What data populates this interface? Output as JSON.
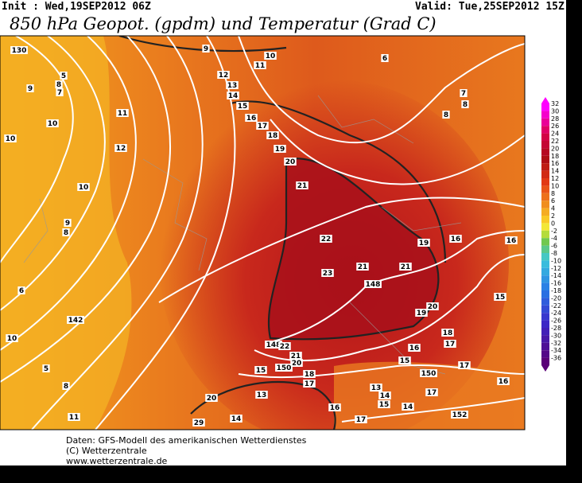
{
  "header": {
    "init": "Init : Wed,19SEP2012 06Z",
    "valid": "Valid: Tue,25SEP2012 15Z",
    "title": "850 hPa Geopot. (gpdm) und Temperatur (Grad C)"
  },
  "colorbar": {
    "labels": [
      "32",
      "30",
      "28",
      "26",
      "24",
      "22",
      "20",
      "18",
      "16",
      "14",
      "12",
      "10",
      "8",
      "6",
      "4",
      "2",
      "0",
      "-2",
      "-4",
      "-6",
      "-8",
      "-10",
      "-12",
      "-14",
      "-16",
      "-18",
      "-20",
      "-22",
      "-24",
      "-26",
      "-28",
      "-30",
      "-32",
      "-34",
      "-36"
    ]
  },
  "map_labels": [
    "130",
    "9",
    "10",
    "11",
    "12",
    "13",
    "14",
    "15",
    "16",
    "17",
    "18",
    "19",
    "20",
    "21",
    "22",
    "21",
    "21",
    "23",
    "148",
    "19",
    "16",
    "16",
    "20",
    "19",
    "15",
    "18",
    "17",
    "16",
    "15",
    "150",
    "17",
    "16",
    "148",
    "22",
    "21",
    "20",
    "150",
    "18",
    "17",
    "15",
    "13",
    "20",
    "29",
    "14",
    "13",
    "14",
    "15",
    "14",
    "17",
    "16",
    "17",
    "152",
    "6",
    "7",
    "8",
    "8",
    "9",
    "8",
    "7",
    "5",
    "10",
    "11",
    "12",
    "10",
    "10",
    "9",
    "8",
    "6",
    "142",
    "5",
    "8",
    "11",
    "10"
  ],
  "footer": [
    "Daten: GFS-Modell des amerikanischen Wetterdienstes",
    "(C) Wetterzentrale",
    "www.wetterzentrale.de"
  ]
}
